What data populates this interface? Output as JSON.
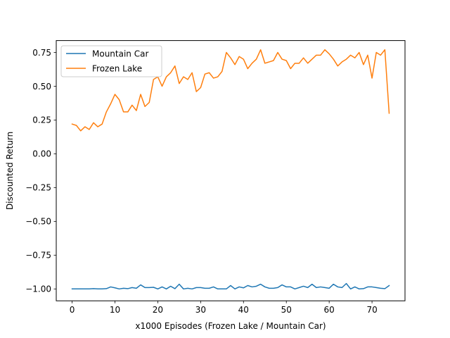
{
  "chart_data": {
    "type": "line",
    "xlabel": "x1000 Episodes (Frozen Lake / Mountain Car)",
    "ylabel": "Discounted Return",
    "xlim": [
      -3.7,
      77.7
    ],
    "ylim": [
      -1.088,
      0.838
    ],
    "xticks": [
      0,
      10,
      20,
      30,
      40,
      50,
      60,
      70
    ],
    "xtick_labels": [
      "0",
      "10",
      "20",
      "30",
      "40",
      "50",
      "60",
      "70"
    ],
    "yticks": [
      -1.0,
      -0.75,
      -0.5,
      -0.25,
      0.0,
      0.25,
      0.5,
      0.75
    ],
    "ytick_labels": [
      "−1.00",
      "−0.75",
      "−0.50",
      "−0.25",
      "0.00",
      "0.25",
      "0.50",
      "0.75"
    ],
    "grid": false,
    "legend_position": "top-left",
    "x": [
      0,
      1,
      2,
      3,
      4,
      5,
      6,
      7,
      8,
      9,
      10,
      11,
      12,
      13,
      14,
      15,
      16,
      17,
      18,
      19,
      20,
      21,
      22,
      23,
      24,
      25,
      26,
      27,
      28,
      29,
      30,
      31,
      32,
      33,
      34,
      35,
      36,
      37,
      38,
      39,
      40,
      41,
      42,
      43,
      44,
      45,
      46,
      47,
      48,
      49,
      50,
      51,
      52,
      53,
      54,
      55,
      56,
      57,
      58,
      59,
      60,
      61,
      62,
      63,
      64,
      65,
      66,
      67,
      68,
      69,
      70,
      71,
      72,
      73,
      74
    ],
    "series": [
      {
        "name": "Mountain Car",
        "color": "#1f77b4",
        "values": [
          -1.0,
          -1.0,
          -1.0,
          -1.0,
          -1.0,
          -0.998,
          -1.0,
          -1.0,
          -0.998,
          -0.985,
          -0.992,
          -1.0,
          -0.995,
          -0.998,
          -0.99,
          -0.995,
          -0.97,
          -0.99,
          -0.99,
          -0.988,
          -1.0,
          -0.985,
          -1.0,
          -0.98,
          -0.998,
          -0.965,
          -1.0,
          -0.995,
          -1.0,
          -0.99,
          -0.99,
          -0.995,
          -0.995,
          -0.985,
          -1.0,
          -1.0,
          -1.0,
          -0.975,
          -1.0,
          -0.985,
          -0.992,
          -0.975,
          -0.985,
          -0.98,
          -0.965,
          -0.985,
          -0.995,
          -0.995,
          -0.99,
          -0.97,
          -0.985,
          -0.985,
          -1.0,
          -0.99,
          -0.98,
          -0.99,
          -0.965,
          -0.99,
          -0.985,
          -0.99,
          -0.995,
          -0.965,
          -0.985,
          -0.99,
          -0.96,
          -1.0,
          -0.985,
          -1.0,
          -0.998,
          -0.985,
          -0.985,
          -0.99,
          -0.995,
          -0.998,
          -0.975
        ]
      },
      {
        "name": "Frozen Lake",
        "color": "#ff7f0e",
        "values": [
          0.22,
          0.21,
          0.17,
          0.2,
          0.18,
          0.23,
          0.2,
          0.22,
          0.31,
          0.37,
          0.44,
          0.4,
          0.31,
          0.31,
          0.36,
          0.32,
          0.44,
          0.35,
          0.38,
          0.55,
          0.57,
          0.5,
          0.57,
          0.6,
          0.65,
          0.52,
          0.57,
          0.55,
          0.6,
          0.46,
          0.49,
          0.59,
          0.6,
          0.56,
          0.57,
          0.61,
          0.75,
          0.71,
          0.66,
          0.72,
          0.7,
          0.63,
          0.67,
          0.7,
          0.77,
          0.67,
          0.68,
          0.69,
          0.75,
          0.7,
          0.69,
          0.63,
          0.67,
          0.67,
          0.71,
          0.67,
          0.7,
          0.73,
          0.73,
          0.77,
          0.74,
          0.7,
          0.65,
          0.68,
          0.7,
          0.73,
          0.71,
          0.75,
          0.66,
          0.73,
          0.56,
          0.75,
          0.73,
          0.77,
          0.3
        ]
      }
    ]
  }
}
